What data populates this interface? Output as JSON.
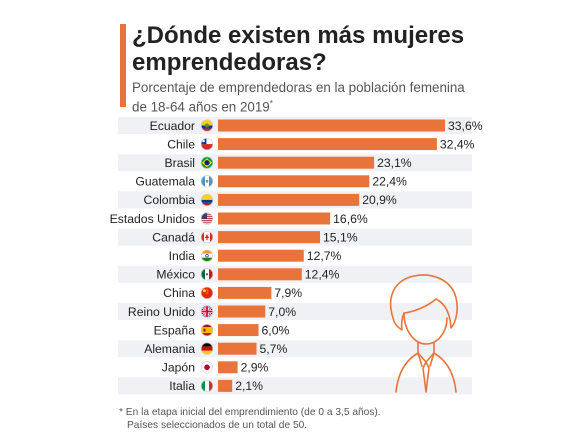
{
  "header": {
    "title": "¿Dónde existen más mujeres emprendedoras?",
    "subtitle": "Porcentaje de emprendedoras en la población femenina de 18-64 años en 2019",
    "subtitle_mark": "*"
  },
  "footnote": {
    "line1": "* En la etapa inicial del emprendimiento (de 0 a 3,5 años).",
    "line2": "Países seleccionados de un total de 50."
  },
  "colors": {
    "accent": "#e8743b",
    "bar": "#e8743b",
    "row_band": "#f0f1f4",
    "text": "#222222",
    "muted": "#555555"
  },
  "illustration": {
    "icon": "businesswoman-icon"
  },
  "chart_data": {
    "type": "bar",
    "orientation": "horizontal",
    "categories": [
      "Ecuador",
      "Chile",
      "Brasil",
      "Guatemala",
      "Colombia",
      "Estados Unidos",
      "Canadá",
      "India",
      "México",
      "China",
      "Reino Unido",
      "España",
      "Alemania",
      "Japón",
      "Italia"
    ],
    "values": [
      33.6,
      32.4,
      23.1,
      22.4,
      20.9,
      16.6,
      15.1,
      12.7,
      12.4,
      7.9,
      7.0,
      6.0,
      5.7,
      2.9,
      2.1
    ],
    "value_labels": [
      "33,6%",
      "32,4%",
      "23,1%",
      "22,4%",
      "20,9%",
      "16,6%",
      "15,1%",
      "12,7%",
      "12,4%",
      "7,9%",
      "7,0%",
      "6,0%",
      "5,7%",
      "2,9%",
      "2,1%"
    ],
    "flag_icons": [
      "flag-ecuador-icon",
      "flag-chile-icon",
      "flag-brazil-icon",
      "flag-guatemala-icon",
      "flag-colombia-icon",
      "flag-usa-icon",
      "flag-canada-icon",
      "flag-india-icon",
      "flag-mexico-icon",
      "flag-china-icon",
      "flag-uk-icon",
      "flag-spain-icon",
      "flag-germany-icon",
      "flag-japan-icon",
      "flag-italy-icon"
    ],
    "xlim": [
      0,
      33.6
    ],
    "grid": false
  }
}
